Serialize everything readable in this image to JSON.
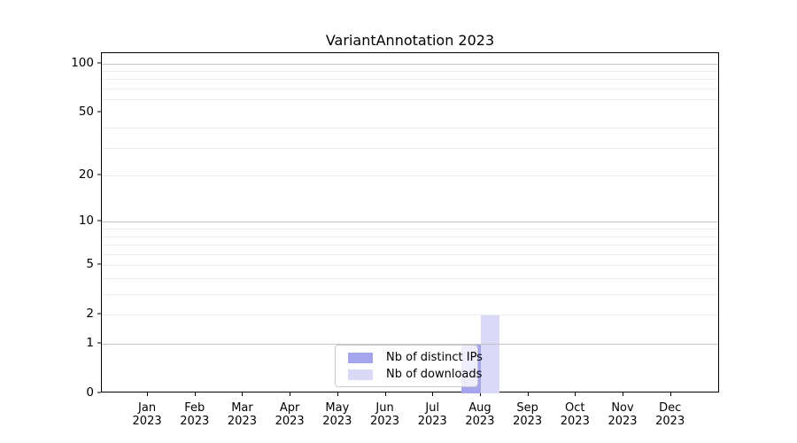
{
  "title": "VariantAnnotation 2023",
  "legend": {
    "items": [
      {
        "label": "Nb of distinct IPs",
        "color": "#a5a5ee"
      },
      {
        "label": "Nb of downloads",
        "color": "#d9d9f7"
      }
    ]
  },
  "chart_data": {
    "type": "bar",
    "title": "VariantAnnotation 2023",
    "categories": [
      "Jan 2023",
      "Feb 2023",
      "Mar 2023",
      "Apr 2023",
      "May 2023",
      "Jun 2023",
      "Jul 2023",
      "Aug 2023",
      "Sep 2023",
      "Oct 2023",
      "Nov 2023",
      "Dec 2023"
    ],
    "series": [
      {
        "name": "Nb of distinct IPs",
        "color": "#a5a5ee",
        "values": [
          0,
          0,
          0,
          0,
          0,
          0,
          0,
          1,
          0,
          0,
          0,
          0
        ]
      },
      {
        "name": "Nb of downloads",
        "color": "#d9d9f7",
        "values": [
          0,
          0,
          0,
          0,
          0,
          0,
          0,
          2,
          0,
          0,
          0,
          0
        ]
      }
    ],
    "yscale": "log10(value+1)",
    "yticks": [
      0,
      1,
      2,
      5,
      10,
      20,
      50,
      100
    ],
    "major_gridlines": [
      1,
      10,
      100
    ],
    "minor_gridlines": [
      2,
      3,
      4,
      5,
      6,
      7,
      8,
      9,
      20,
      30,
      40,
      60,
      70,
      80,
      90
    ],
    "ylim": [
      0,
      115
    ],
    "grid": true,
    "legend_position": "lower center",
    "bar_colors": {
      "distinct_ips": "#a5a5ee",
      "downloads": "#d9d9f7"
    },
    "axis_color": "#000000",
    "minor_grid_color": "#ebebeb",
    "major_grid_color": "#c4c4c4"
  }
}
